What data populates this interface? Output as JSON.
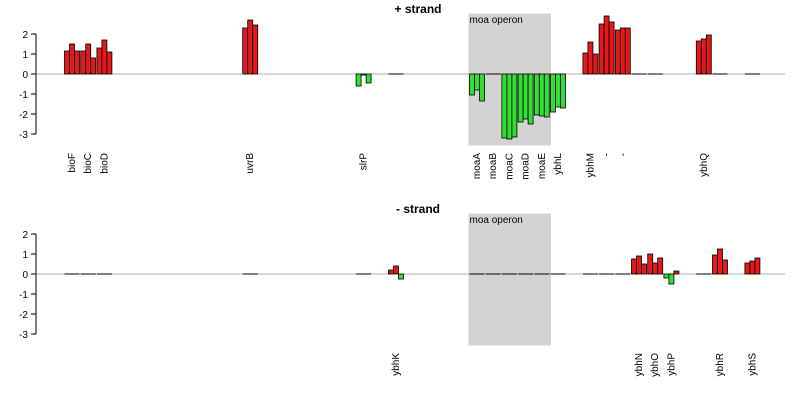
{
  "chart_data": [
    {
      "type": "bar",
      "title": "+ strand",
      "xlabel": "",
      "ylabel": "",
      "ylim": [
        -3.3,
        3
      ],
      "yticks": [
        -3,
        -2,
        -1,
        0,
        1,
        2
      ],
      "zero_line": true,
      "colors": {
        "positive": "#e31a1c",
        "negative": "#33dd33",
        "region": "#d3d3d3",
        "zero_line": "#b0b0b0"
      },
      "highlight_regions": [
        {
          "label": "moa operon",
          "from_gene": "moaA",
          "to_gene": "moaE"
        }
      ],
      "genes": [
        {
          "label": "bioF",
          "slot": 0,
          "values": [
            1.15,
            1.5,
            1.15
          ]
        },
        {
          "label": "bioC",
          "slot": 1,
          "values": [
            1.15,
            1.5,
            0.8
          ]
        },
        {
          "label": "bioD",
          "slot": 2,
          "values": [
            1.3,
            1.7,
            1.1
          ]
        },
        {
          "label": "uvrB",
          "slot": 11,
          "values": [
            2.3,
            2.7,
            2.45
          ]
        },
        {
          "label": "slrP",
          "slot": 18,
          "values": [
            -0.6,
            -0.05,
            -0.45
          ]
        },
        {
          "label": "",
          "slot": 20,
          "values": [
            0,
            0,
            0
          ]
        },
        {
          "label": "moaA",
          "slot": 25,
          "values": [
            -1.05,
            -0.8,
            -1.35
          ]
        },
        {
          "label": "moaB",
          "slot": 26,
          "values": [
            0,
            0,
            0
          ]
        },
        {
          "label": "moaC",
          "slot": 27,
          "values": [
            -3.2,
            -3.25,
            -3.15
          ]
        },
        {
          "label": "moaD",
          "slot": 28,
          "values": [
            -2.4,
            -2.25,
            -2.5
          ]
        },
        {
          "label": "moaE",
          "slot": 29,
          "values": [
            -2.05,
            -2.1,
            -2.15
          ]
        },
        {
          "label": "ybhL",
          "slot": 30,
          "values": [
            -1.9,
            -1.65,
            -1.7
          ]
        },
        {
          "label": "ybhM",
          "slot": 32,
          "values": [
            1.05,
            1.6,
            1.0
          ]
        },
        {
          "label": "-",
          "slot": 33,
          "values": [
            2.5,
            2.9,
            2.6
          ]
        },
        {
          "label": "-",
          "slot": 34,
          "values": [
            2.2,
            2.3,
            2.3
          ]
        },
        {
          "label": "",
          "slot": 35,
          "values": [
            0,
            0,
            0
          ]
        },
        {
          "label": "",
          "slot": 36,
          "values": [
            0,
            0,
            0
          ]
        },
        {
          "label": "ybhQ",
          "slot": 39,
          "values": [
            1.65,
            1.75,
            1.95
          ]
        },
        {
          "label": "",
          "slot": 40,
          "values": [
            0,
            0,
            0
          ]
        },
        {
          "label": "",
          "slot": 42,
          "values": [
            0,
            0,
            0
          ]
        }
      ]
    },
    {
      "type": "bar",
      "title": "- strand",
      "xlabel": "",
      "ylabel": "",
      "ylim": [
        -3.3,
        3
      ],
      "yticks": [
        -3,
        -2,
        -1,
        0,
        1,
        2
      ],
      "zero_line": true,
      "colors": {
        "positive": "#e31a1c",
        "negative": "#33dd33",
        "region": "#d3d3d3",
        "zero_line": "#b0b0b0"
      },
      "highlight_regions": [
        {
          "label": "moa operon",
          "from_gene": "moaA",
          "to_gene": "moaE"
        }
      ],
      "genes": [
        {
          "label": "",
          "slot": 0,
          "values": [
            0,
            0,
            0
          ]
        },
        {
          "label": "",
          "slot": 1,
          "values": [
            0,
            0,
            0
          ]
        },
        {
          "label": "",
          "slot": 2,
          "values": [
            0,
            0,
            0
          ]
        },
        {
          "label": "",
          "slot": 11,
          "values": [
            0,
            0,
            0
          ]
        },
        {
          "label": "",
          "slot": 18,
          "values": [
            0,
            0,
            0
          ]
        },
        {
          "label": "ybhK",
          "slot": 20,
          "values": [
            0.2,
            0.4,
            -0.25
          ]
        },
        {
          "label": "",
          "slot": 25,
          "values": [
            0,
            0,
            0
          ]
        },
        {
          "label": "",
          "slot": 26,
          "values": [
            0,
            0,
            0
          ]
        },
        {
          "label": "",
          "slot": 27,
          "values": [
            0,
            0,
            0
          ]
        },
        {
          "label": "",
          "slot": 28,
          "values": [
            0,
            0,
            0
          ]
        },
        {
          "label": "",
          "slot": 29,
          "values": [
            0,
            0,
            0
          ]
        },
        {
          "label": "",
          "slot": 30,
          "values": [
            0,
            0,
            0
          ]
        },
        {
          "label": "",
          "slot": 32,
          "values": [
            0,
            0,
            0
          ]
        },
        {
          "label": "",
          "slot": 33,
          "values": [
            0,
            0,
            0
          ]
        },
        {
          "label": "",
          "slot": 34,
          "values": [
            0,
            0,
            0
          ]
        },
        {
          "label": "ybhN",
          "slot": 35,
          "values": [
            0.75,
            0.9,
            0.5
          ]
        },
        {
          "label": "ybhO",
          "slot": 36,
          "values": [
            1.0,
            0.55,
            0.8
          ]
        },
        {
          "label": "ybhP",
          "slot": 37,
          "values": [
            -0.2,
            -0.5,
            0.15
          ]
        },
        {
          "label": "",
          "slot": 39,
          "values": [
            0,
            0,
            0
          ]
        },
        {
          "label": "ybhR",
          "slot": 40,
          "values": [
            0.95,
            1.25,
            0.7
          ]
        },
        {
          "label": "ybhS",
          "slot": 42,
          "values": [
            0.55,
            0.65,
            0.8
          ]
        }
      ]
    }
  ]
}
